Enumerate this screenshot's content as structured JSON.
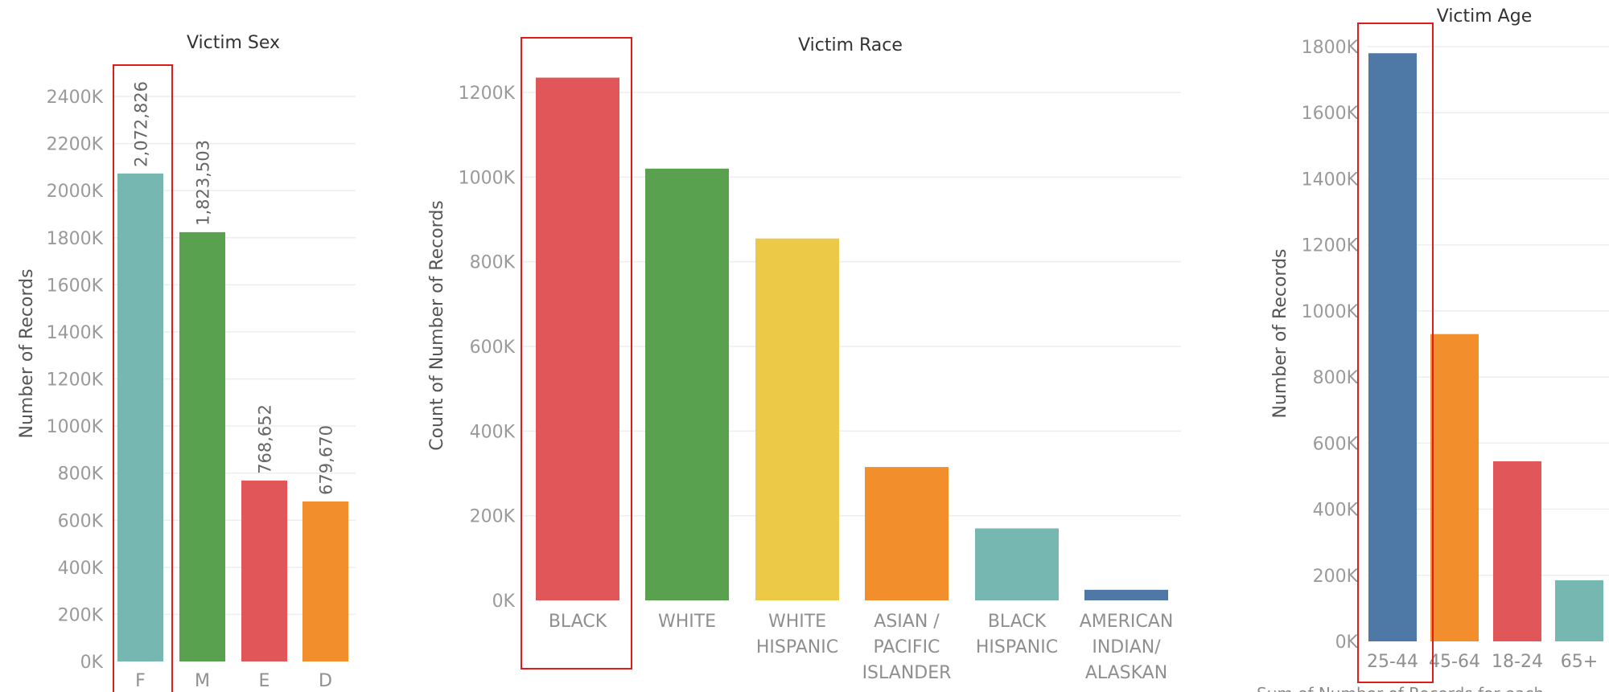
{
  "chart_data": [
    {
      "type": "bar",
      "title": "Victim Sex",
      "ylabel": "Number of Records",
      "ylim": [
        0,
        2400000
      ],
      "ticks": [
        "0K",
        "200K",
        "400K",
        "600K",
        "800K",
        "1000K",
        "1200K",
        "1400K",
        "1600K",
        "1800K",
        "2000K",
        "2200K",
        "2400K"
      ],
      "categories": [
        "F",
        "M",
        "E",
        "D"
      ],
      "values": [
        2072826,
        1823503,
        768652,
        679670
      ],
      "value_labels": [
        "2,072,826",
        "1,823,503",
        "768,652",
        "679,670"
      ],
      "colors": [
        "#76b7b2",
        "#59a14f",
        "#e15759",
        "#f28e2b"
      ],
      "highlighted": "F"
    },
    {
      "type": "bar",
      "title": "Victim Race",
      "ylabel": "Count of Number of Records",
      "ylim": [
        0,
        1200000
      ],
      "ticks": [
        "0K",
        "200K",
        "400K",
        "600K",
        "800K",
        "1000K",
        "1200K"
      ],
      "categories": [
        [
          "BLACK"
        ],
        [
          "WHITE"
        ],
        [
          "WHITE",
          "HISPANIC"
        ],
        [
          "ASIAN /",
          "PACIFIC",
          "ISLANDER"
        ],
        [
          "BLACK",
          "HISPANIC"
        ],
        [
          "AMERICAN",
          "INDIAN/",
          "ALASKAN"
        ]
      ],
      "values": [
        1235000,
        1020000,
        855000,
        315000,
        170000,
        25000
      ],
      "colors": [
        "#e15759",
        "#59a14f",
        "#edc948",
        "#f28e2b",
        "#76b7b2",
        "#4e79a7"
      ],
      "highlighted": "BLACK"
    },
    {
      "type": "bar",
      "title": "Victim Age",
      "ylabel": "Number of Records",
      "ylim": [
        0,
        1800000
      ],
      "ticks": [
        "0K",
        "200K",
        "400K",
        "600K",
        "800K",
        "1000K",
        "1200K",
        "1400K",
        "1600K",
        "1800K"
      ],
      "categories": [
        "25-44",
        "45-64",
        "18-24",
        "65+"
      ],
      "values": [
        1780000,
        930000,
        545000,
        185000
      ],
      "colors": [
        "#4e79a7",
        "#f28e2b",
        "#e15759",
        "#76b7b2"
      ],
      "highlighted": "25-44",
      "footer": "Sum of Number of Records for each"
    }
  ]
}
